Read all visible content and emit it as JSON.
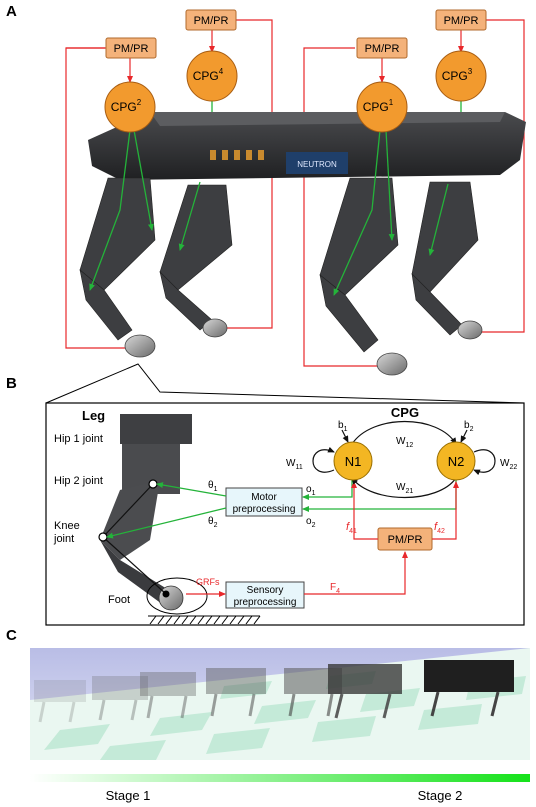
{
  "panels": {
    "a": "A",
    "b": "B",
    "c": "C"
  },
  "panel_a": {
    "modulators": [
      "PM/PR",
      "PM/PR",
      "PM/PR",
      "PM/PR"
    ],
    "cpgs": [
      {
        "base": "CPG",
        "sup": "2"
      },
      {
        "base": "CPG",
        "sup": "4"
      },
      {
        "base": "CPG",
        "sup": "1"
      },
      {
        "base": "CPG",
        "sup": "3"
      }
    ],
    "brand_label": "NEUTRON"
  },
  "panel_b": {
    "leg_title": "Leg",
    "hip1": "Hip 1 joint",
    "hip2": "Hip 2 joint",
    "knee_line1": "Knee",
    "knee_line2": "joint",
    "foot": "Foot",
    "theta1": "θ",
    "theta1_sub": "1",
    "theta2": "θ",
    "theta2_sub": "2",
    "motor_line1": "Motor",
    "motor_line2": "preprocessing",
    "sensory_line1": "Sensory",
    "sensory_line2": "preprocessing",
    "grfs": "GRFs",
    "f4": "F",
    "f4_sub": "4",
    "o1": "o",
    "o1_sub": "1",
    "o2": "o",
    "o2_sub": "2",
    "cpg_title": "CPG",
    "n1": "N1",
    "n2": "N2",
    "b1": "b",
    "b1_sub": "1",
    "b2": "b",
    "b2_sub": "2",
    "w11": "W",
    "w11_sub": "11",
    "w12": "W",
    "w12_sub": "12",
    "w21": "W",
    "w21_sub": "21",
    "w22": "W",
    "w22_sub": "22",
    "f41": "f",
    "f41_sub": "41",
    "f42": "f",
    "f42_sub": "42",
    "pmpr": "PM/PR"
  },
  "panel_c": {
    "stage1": "Stage 1",
    "stage2": "Stage 2"
  },
  "colors": {
    "cpg_orange": "#f29a2e",
    "neuron_yellow": "#f3b623",
    "modulator_box": "#f4b27a",
    "feedback_red": "#e8282b",
    "signal_green": "#24b33a",
    "preprocessing_box": "#e7f6fb",
    "floor_tile": "#cfeee0",
    "sky": "#c9cdea"
  }
}
